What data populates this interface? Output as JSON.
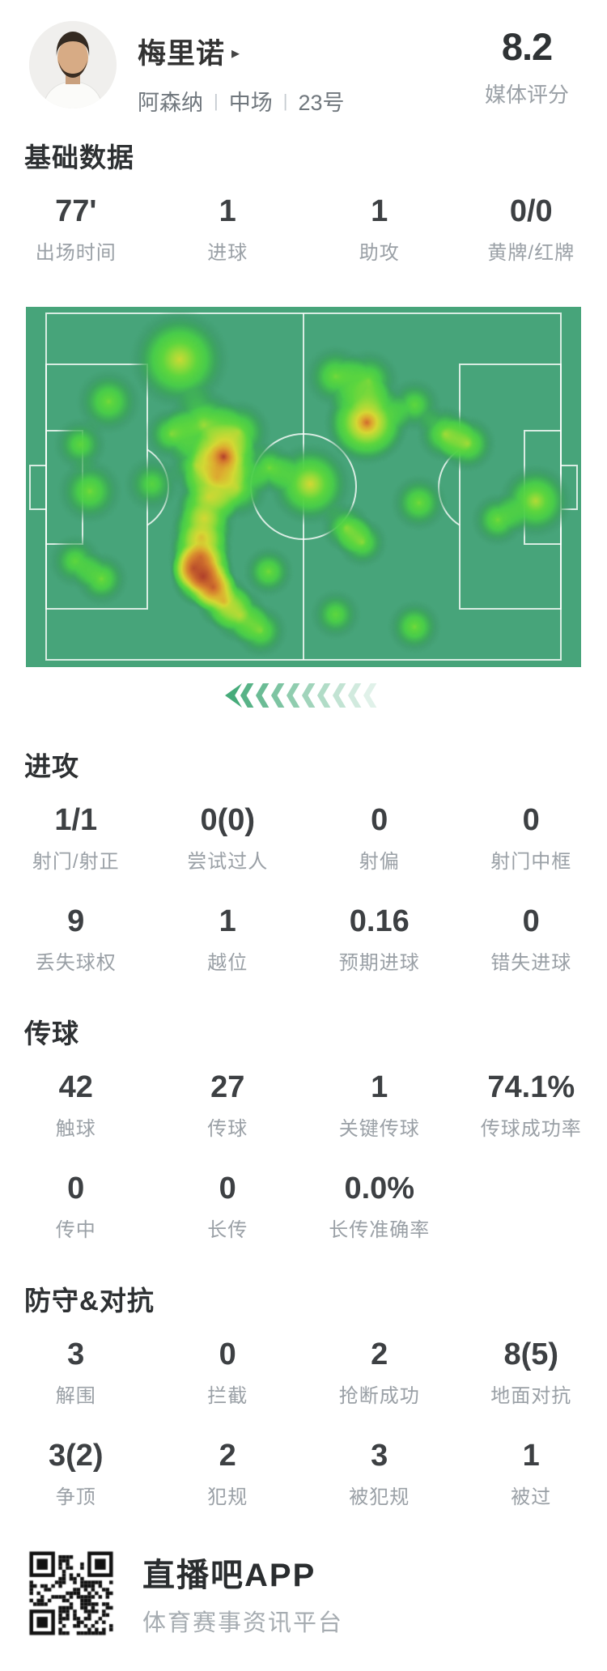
{
  "header": {
    "player_name": "梅里诺",
    "team": "阿森纳",
    "position": "中场",
    "number": "23号",
    "separator": "|",
    "rating": "8.2",
    "rating_label": "媒体评分"
  },
  "sections": {
    "basic": {
      "title": "基础数据",
      "rows": [
        {
          "cells": [
            {
              "value": "77'",
              "label": "出场时间"
            },
            {
              "value": "1",
              "label": "进球"
            },
            {
              "value": "1",
              "label": "助攻"
            },
            {
              "value": "0/0",
              "label": "黄牌/红牌"
            }
          ]
        }
      ]
    },
    "attack": {
      "title": "进攻",
      "rows": [
        {
          "cells": [
            {
              "value": "1/1",
              "label": "射门/射正"
            },
            {
              "value": "0(0)",
              "label": "尝试过人"
            },
            {
              "value": "0",
              "label": "射偏"
            },
            {
              "value": "0",
              "label": "射门中框"
            }
          ]
        },
        {
          "cells": [
            {
              "value": "9",
              "label": "丢失球权"
            },
            {
              "value": "1",
              "label": "越位"
            },
            {
              "value": "0.16",
              "label": "预期进球"
            },
            {
              "value": "0",
              "label": "错失进球"
            }
          ]
        }
      ]
    },
    "passing": {
      "title": "传球",
      "rows": [
        {
          "cells": [
            {
              "value": "42",
              "label": "触球"
            },
            {
              "value": "27",
              "label": "传球"
            },
            {
              "value": "1",
              "label": "关键传球"
            },
            {
              "value": "74.1%",
              "label": "传球成功率"
            }
          ]
        },
        {
          "cells": [
            {
              "value": "0",
              "label": "传中"
            },
            {
              "value": "0",
              "label": "长传"
            },
            {
              "value": "0.0%",
              "label": "长传准确率"
            }
          ]
        }
      ]
    },
    "defense": {
      "title": "防守&对抗",
      "rows": [
        {
          "cells": [
            {
              "value": "3",
              "label": "解围"
            },
            {
              "value": "0",
              "label": "拦截"
            },
            {
              "value": "2",
              "label": "抢断成功"
            },
            {
              "value": "8(5)",
              "label": "地面对抗"
            }
          ]
        },
        {
          "cells": [
            {
              "value": "3(2)",
              "label": "争顶"
            },
            {
              "value": "2",
              "label": "犯规"
            },
            {
              "value": "3",
              "label": "被犯规"
            },
            {
              "value": "1",
              "label": "被过"
            }
          ]
        }
      ]
    }
  },
  "heatmap": {
    "pitch_color": "#48a57b",
    "line_color": "rgba(255,255,255,0.8)",
    "palette": [
      [
        0.0,
        "rgba(60,150,100,0)"
      ],
      [
        0.1,
        "rgba(56,148,96,0.35)"
      ],
      [
        0.2,
        "rgba(58,165,85,0.75)"
      ],
      [
        0.32,
        "rgba(72,205,72,0.95)"
      ],
      [
        0.45,
        "rgba(93,214,62,1)"
      ],
      [
        0.58,
        "rgba(158,219,56,1)"
      ],
      [
        0.7,
        "rgba(212,216,52,1)"
      ],
      [
        0.8,
        "rgba(221,173,48,1)"
      ],
      [
        0.9,
        "rgba(212,120,46,1)"
      ],
      [
        1.0,
        "rgba(176,62,43,1)"
      ]
    ],
    "points": [
      [
        0.277,
        0.146,
        0.035,
        0.68
      ],
      [
        0.149,
        0.263,
        0.023,
        0.5
      ],
      [
        0.098,
        0.382,
        0.019,
        0.45
      ],
      [
        0.115,
        0.512,
        0.023,
        0.5
      ],
      [
        0.262,
        0.353,
        0.019,
        0.5
      ],
      [
        0.227,
        0.492,
        0.02,
        0.42
      ],
      [
        0.321,
        0.328,
        0.026,
        0.58
      ],
      [
        0.356,
        0.416,
        0.023,
        1.0
      ],
      [
        0.383,
        0.348,
        0.023,
        0.55
      ],
      [
        0.308,
        0.44,
        0.02,
        0.5
      ],
      [
        0.38,
        0.501,
        0.023,
        0.55
      ],
      [
        0.439,
        0.447,
        0.018,
        0.5
      ],
      [
        0.512,
        0.492,
        0.029,
        0.7
      ],
      [
        0.558,
        0.193,
        0.022,
        0.5
      ],
      [
        0.617,
        0.204,
        0.022,
        0.5
      ],
      [
        0.7,
        0.272,
        0.019,
        0.45
      ],
      [
        0.614,
        0.321,
        0.03,
        0.92
      ],
      [
        0.755,
        0.353,
        0.02,
        0.55
      ],
      [
        0.796,
        0.38,
        0.02,
        0.55
      ],
      [
        0.708,
        0.544,
        0.02,
        0.5
      ],
      [
        0.85,
        0.591,
        0.019,
        0.5
      ],
      [
        0.918,
        0.539,
        0.026,
        0.62
      ],
      [
        0.577,
        0.613,
        0.018,
        0.5
      ],
      [
        0.606,
        0.654,
        0.018,
        0.5
      ],
      [
        0.344,
        0.474,
        0.023,
        0.52
      ],
      [
        0.329,
        0.528,
        0.023,
        0.5
      ],
      [
        0.321,
        0.587,
        0.023,
        0.52
      ],
      [
        0.316,
        0.64,
        0.023,
        0.56
      ],
      [
        0.315,
        0.694,
        0.023,
        0.72
      ],
      [
        0.303,
        0.726,
        0.017,
        0.88
      ],
      [
        0.319,
        0.748,
        0.023,
        1.0
      ],
      [
        0.337,
        0.778,
        0.017,
        0.85
      ],
      [
        0.357,
        0.818,
        0.02,
        0.68
      ],
      [
        0.385,
        0.856,
        0.02,
        0.55
      ],
      [
        0.089,
        0.706,
        0.019,
        0.45
      ],
      [
        0.136,
        0.755,
        0.019,
        0.5
      ],
      [
        0.437,
        0.735,
        0.018,
        0.5
      ],
      [
        0.423,
        0.899,
        0.019,
        0.5
      ],
      [
        0.558,
        0.854,
        0.018,
        0.45
      ],
      [
        0.7,
        0.888,
        0.019,
        0.5
      ]
    ]
  },
  "chevrons": {
    "count": 10,
    "color": "#46ab7a",
    "opacities": [
      1,
      0.9,
      0.8,
      0.7,
      0.6,
      0.51,
      0.42,
      0.33,
      0.25,
      0.17
    ]
  },
  "footer": {
    "app_name": "直播吧APP",
    "app_desc": "体育赛事资讯平台"
  }
}
